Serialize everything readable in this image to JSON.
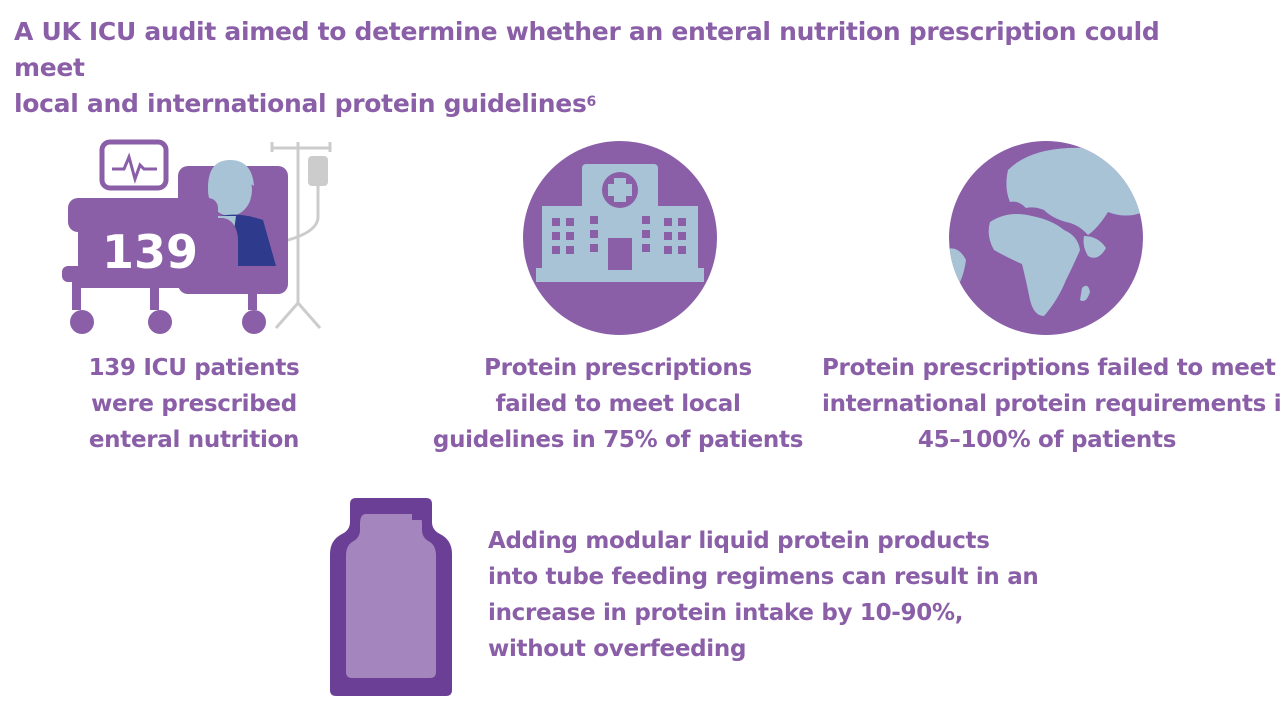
{
  "title": {
    "line1": "A UK ICU audit aimed to determine whether an enteral nutrition prescription could meet",
    "line2": "local and international protein guidelines",
    "superscript": "6"
  },
  "icons": {
    "bed": "icu-bed-icon",
    "hospital": "hospital-icon",
    "globe": "globe-icon",
    "pouch": "protein-pouch-icon"
  },
  "bed_number": "139",
  "captions": {
    "patients": [
      "139 ICU patients",
      "were prescribed",
      "enteral nutrition"
    ],
    "local": [
      "Protein prescriptions",
      "failed to meet local",
      "guidelines in 75% of patients"
    ],
    "international": [
      "Protein prescriptions failed to meet",
      "international protein requirements in",
      "45–100% of patients"
    ]
  },
  "bottom_text": [
    "Adding modular liquid protein products",
    "into tube feeding regimens can result in an",
    "increase in protein intake by 10-90%,",
    "without overfeeding"
  ],
  "colors": {
    "purple": "#8a5fa8",
    "light_blue": "#a9c3d6",
    "dark_purple": "#6b3f96",
    "navy": "#2e3a8c"
  }
}
